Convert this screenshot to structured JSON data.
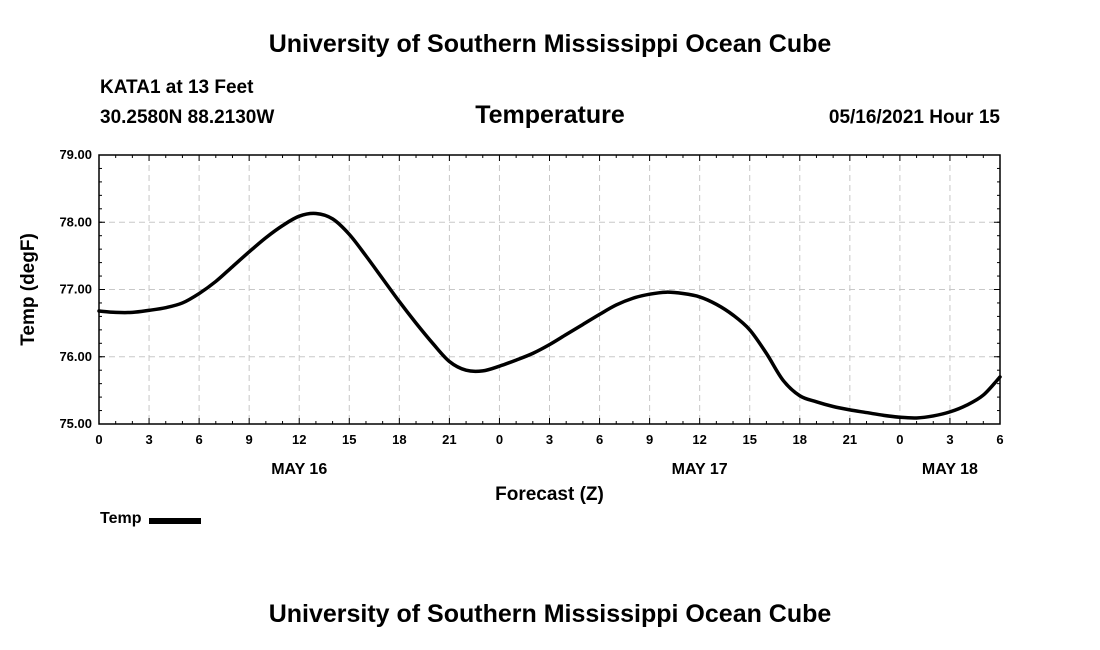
{
  "header": {
    "title": "University of Southern Mississippi Ocean Cube",
    "station": "KATA1 at 13 Feet",
    "coords": "30.2580N  88.2130W",
    "variable": "Temperature",
    "run_time": "05/16/2021 Hour 15"
  },
  "footer": {
    "title": "University of Southern Mississippi Ocean Cube"
  },
  "legend": {
    "label": "Temp"
  },
  "chart_data": {
    "type": "line",
    "title": "Temperature",
    "xlabel": "Forecast (Z)",
    "ylabel": "Temp (degF)",
    "ylim": [
      75.0,
      79.0
    ],
    "xlim": [
      0,
      54
    ],
    "y_ticks": [
      "75.00",
      "76.00",
      "77.00",
      "78.00",
      "79.00"
    ],
    "x_ticks": [
      "0",
      "3",
      "6",
      "9",
      "12",
      "15",
      "18",
      "21",
      "0",
      "3",
      "6",
      "9",
      "12",
      "15",
      "18",
      "21",
      "0",
      "3",
      "6"
    ],
    "date_labels": [
      {
        "label": "MAY 16",
        "hour": 12
      },
      {
        "label": "MAY 17",
        "hour": 36
      },
      {
        "label": "MAY 18",
        "hour": 51
      }
    ],
    "grid": true,
    "line_color": "#000000",
    "series": [
      {
        "name": "Temp",
        "x": [
          0,
          1,
          2,
          3,
          4,
          5,
          6,
          7,
          8,
          9,
          10,
          11,
          12,
          13,
          14,
          15,
          16,
          17,
          18,
          19,
          20,
          21,
          22,
          23,
          24,
          25,
          26,
          27,
          28,
          29,
          30,
          31,
          32,
          33,
          34,
          35,
          36,
          37,
          38,
          39,
          40,
          41,
          42,
          43,
          44,
          45,
          46,
          47,
          48,
          49,
          50,
          51,
          52,
          53,
          54
        ],
        "values": [
          76.68,
          76.66,
          76.66,
          76.69,
          76.73,
          76.8,
          76.94,
          77.12,
          77.34,
          77.56,
          77.77,
          77.95,
          78.09,
          78.13,
          78.05,
          77.82,
          77.5,
          77.16,
          76.82,
          76.5,
          76.2,
          75.93,
          75.8,
          75.79,
          75.86,
          75.95,
          76.05,
          76.18,
          76.33,
          76.48,
          76.63,
          76.77,
          76.87,
          76.93,
          76.96,
          76.94,
          76.89,
          76.78,
          76.62,
          76.4,
          76.05,
          75.65,
          75.42,
          75.33,
          75.26,
          75.21,
          75.17,
          75.13,
          75.1,
          75.09,
          75.12,
          75.18,
          75.28,
          75.43,
          75.7
        ]
      }
    ]
  }
}
